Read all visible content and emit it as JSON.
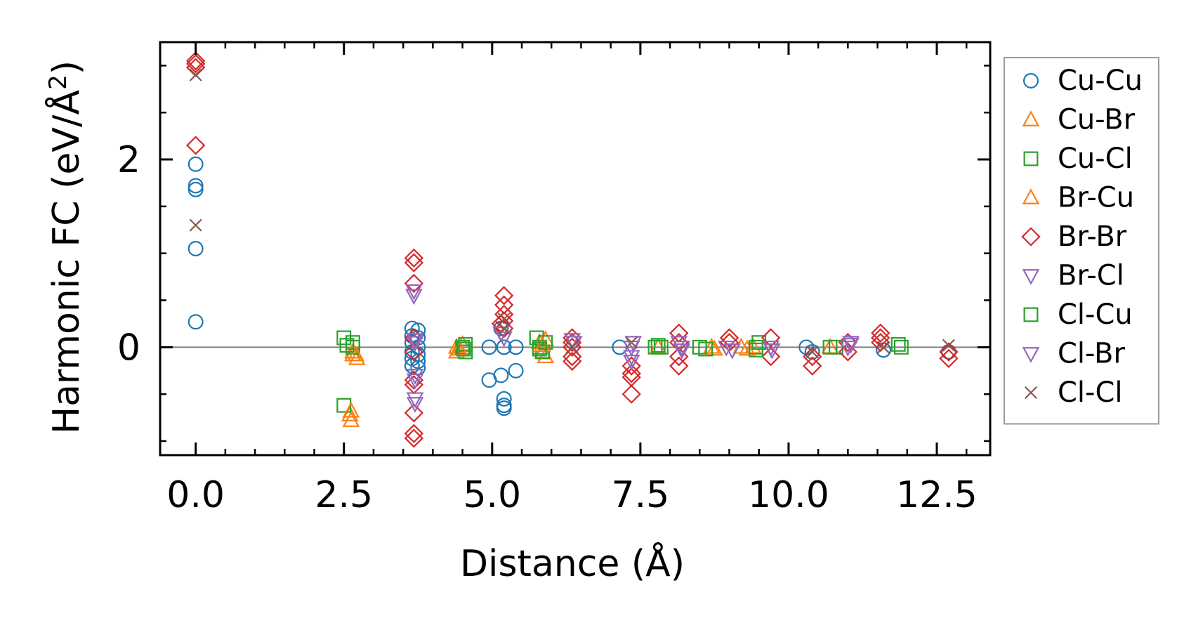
{
  "chart_data": {
    "type": "scatter",
    "title": "",
    "xlabel": "Distance (Å)",
    "ylabel_main": "Harmonic FC (eV/Å",
    "ylabel_sup": "2",
    "ylabel_close": ")",
    "xlim": [
      -0.6,
      13.4
    ],
    "ylim": [
      -1.15,
      3.25
    ],
    "xticks": [
      0.0,
      2.5,
      5.0,
      7.5,
      10.0,
      12.5
    ],
    "xtick_labels": [
      "0.0",
      "2.5",
      "5.0",
      "7.5",
      "10.0",
      "12.5"
    ],
    "yticks": [
      0,
      2
    ],
    "ytick_labels": [
      "0",
      "2"
    ],
    "minor_x_step": 0.5,
    "minor_y_step": 0.5,
    "zero_line": true,
    "legend_position": "outside-right",
    "series": [
      {
        "name": "Cu-Cu",
        "marker": "circle",
        "color": "#1f77b4",
        "points": [
          [
            0,
            1.95
          ],
          [
            0,
            1.72
          ],
          [
            0,
            1.68
          ],
          [
            0,
            1.05
          ],
          [
            0,
            0.27
          ],
          [
            3.65,
            0.2
          ],
          [
            3.65,
            0.12
          ],
          [
            3.65,
            0.05
          ],
          [
            3.65,
            -0.05
          ],
          [
            3.65,
            -0.12
          ],
          [
            3.65,
            -0.2
          ],
          [
            3.75,
            0.18
          ],
          [
            3.75,
            0.1
          ],
          [
            3.75,
            0.0
          ],
          [
            3.75,
            -0.08
          ],
          [
            3.75,
            -0.15
          ],
          [
            3.75,
            -0.22
          ],
          [
            4.95,
            0.0
          ],
          [
            4.95,
            -0.35
          ],
          [
            5.15,
            -0.3
          ],
          [
            5.15,
            0.2
          ],
          [
            5.2,
            0.0
          ],
          [
            5.2,
            -0.55
          ],
          [
            5.2,
            -0.62
          ],
          [
            5.2,
            -0.65
          ],
          [
            5.4,
            -0.25
          ],
          [
            5.4,
            0.0
          ],
          [
            7.15,
            0.0
          ],
          [
            10.3,
            0.0
          ],
          [
            10.4,
            -0.05
          ],
          [
            11.6,
            -0.03
          ],
          [
            12.7,
            -0.05
          ]
        ]
      },
      {
        "name": "Cu-Br",
        "marker": "triangle-up",
        "color": "#ff7f0e",
        "points": [
          [
            2.6,
            -0.72
          ],
          [
            2.62,
            -0.78
          ],
          [
            2.65,
            -0.05
          ],
          [
            2.65,
            -0.08
          ],
          [
            2.72,
            -0.12
          ],
          [
            4.4,
            0.0
          ],
          [
            4.4,
            -0.05
          ],
          [
            4.5,
            0.03
          ],
          [
            5.8,
            0.05
          ],
          [
            5.85,
            -0.05
          ],
          [
            5.9,
            0.08
          ],
          [
            5.9,
            -0.1
          ],
          [
            7.8,
            0.0
          ],
          [
            8.7,
            0.0
          ],
          [
            9.2,
            0.0
          ],
          [
            9.4,
            0.0
          ],
          [
            10.7,
            0.0
          ]
        ]
      },
      {
        "name": "Cu-Cl",
        "marker": "square",
        "color": "#2ca02c",
        "points": [
          [
            2.5,
            0.1
          ],
          [
            2.5,
            -0.62
          ],
          [
            2.65,
            0.05
          ],
          [
            2.65,
            0.0
          ],
          [
            4.5,
            0.0
          ],
          [
            4.55,
            0.03
          ],
          [
            4.55,
            -0.05
          ],
          [
            5.75,
            0.1
          ],
          [
            5.8,
            0.0
          ],
          [
            5.85,
            -0.05
          ],
          [
            5.9,
            0.05
          ],
          [
            7.75,
            0.0
          ],
          [
            7.85,
            0.0
          ],
          [
            8.5,
            0.0
          ],
          [
            9.45,
            0.0
          ],
          [
            9.5,
            0.05
          ],
          [
            10.7,
            0.0
          ],
          [
            10.8,
            0.0
          ],
          [
            11.9,
            0.0
          ]
        ]
      },
      {
        "name": "Br-Cu",
        "marker": "triangle-up",
        "color": "#ff7f0e",
        "points": [
          [
            2.62,
            -0.68
          ],
          [
            2.7,
            -0.08
          ],
          [
            4.45,
            -0.02
          ],
          [
            5.85,
            0.02
          ],
          [
            8.75,
            -0.02
          ],
          [
            9.3,
            -0.02
          ]
        ]
      },
      {
        "name": "Br-Br",
        "marker": "diamond",
        "color": "#d62728",
        "points": [
          [
            0,
            3.05
          ],
          [
            0,
            3.02
          ],
          [
            0,
            2.98
          ],
          [
            0,
            2.15
          ],
          [
            3.68,
            0.95
          ],
          [
            3.68,
            0.9
          ],
          [
            3.68,
            0.68
          ],
          [
            3.68,
            0.1
          ],
          [
            3.68,
            -0.05
          ],
          [
            3.68,
            -0.35
          ],
          [
            3.68,
            -0.4
          ],
          [
            3.68,
            -0.7
          ],
          [
            3.68,
            -0.92
          ],
          [
            3.68,
            -0.97
          ],
          [
            5.2,
            0.55
          ],
          [
            5.2,
            0.45
          ],
          [
            5.2,
            0.35
          ],
          [
            5.2,
            0.28
          ],
          [
            5.2,
            0.2
          ],
          [
            5.15,
            0.25
          ],
          [
            6.35,
            0.1
          ],
          [
            6.35,
            0.05
          ],
          [
            6.35,
            0.0
          ],
          [
            6.35,
            -0.1
          ],
          [
            6.35,
            -0.15
          ],
          [
            7.35,
            -0.2
          ],
          [
            7.35,
            -0.28
          ],
          [
            7.35,
            -0.32
          ],
          [
            7.35,
            -0.5
          ],
          [
            8.15,
            0.15
          ],
          [
            8.15,
            0.05
          ],
          [
            8.15,
            -0.1
          ],
          [
            8.15,
            -0.2
          ],
          [
            9.0,
            0.1
          ],
          [
            9.0,
            0.05
          ],
          [
            9.7,
            0.1
          ],
          [
            9.7,
            -0.1
          ],
          [
            10.4,
            -0.1
          ],
          [
            10.4,
            -0.2
          ],
          [
            11.0,
            0.05
          ],
          [
            11.0,
            -0.05
          ],
          [
            11.55,
            0.15
          ],
          [
            11.55,
            0.1
          ],
          [
            11.55,
            0.05
          ],
          [
            12.7,
            -0.05
          ],
          [
            12.7,
            -0.12
          ]
        ]
      },
      {
        "name": "Br-Cl",
        "marker": "triangle-down",
        "color": "#9467bd",
        "points": [
          [
            3.68,
            0.6
          ],
          [
            3.68,
            0.55
          ],
          [
            3.7,
            0.08
          ],
          [
            3.7,
            -0.3
          ],
          [
            3.7,
            -0.55
          ],
          [
            3.7,
            -0.6
          ],
          [
            5.15,
            0.15
          ],
          [
            5.2,
            0.1
          ],
          [
            6.35,
            0.08
          ],
          [
            7.35,
            0.0
          ],
          [
            7.35,
            -0.1
          ],
          [
            7.35,
            -0.15
          ],
          [
            8.15,
            0.05
          ],
          [
            8.2,
            0.0
          ],
          [
            8.95,
            0.0
          ],
          [
            9.7,
            0.0
          ],
          [
            11.0,
            0.0
          ],
          [
            11.05,
            0.05
          ]
        ]
      },
      {
        "name": "Cl-Cu",
        "marker": "square",
        "color": "#2ca02c",
        "points": [
          [
            2.55,
            0.02
          ],
          [
            4.52,
            -0.02
          ],
          [
            5.8,
            -0.02
          ],
          [
            7.8,
            0.02
          ],
          [
            8.6,
            -0.02
          ],
          [
            9.45,
            -0.03
          ],
          [
            11.85,
            0.03
          ]
        ]
      },
      {
        "name": "Cl-Br",
        "marker": "triangle-down",
        "color": "#9467bd",
        "points": [
          [
            3.7,
            0.05
          ],
          [
            3.7,
            -0.35
          ],
          [
            6.38,
            0.05
          ],
          [
            7.38,
            0.05
          ],
          [
            8.2,
            -0.03
          ],
          [
            9.05,
            -0.03
          ],
          [
            9.72,
            -0.03
          ],
          [
            11.05,
            0.03
          ]
        ]
      },
      {
        "name": "Cl-Cl",
        "marker": "x",
        "color": "#8c564b",
        "points": [
          [
            0,
            2.9
          ],
          [
            0,
            1.3
          ],
          [
            5.2,
            0.3
          ],
          [
            5.2,
            0.2
          ],
          [
            6.35,
            0.0
          ],
          [
            7.35,
            0.05
          ],
          [
            10.4,
            -0.05
          ],
          [
            11.6,
            0.0
          ],
          [
            12.7,
            0.02
          ]
        ]
      }
    ]
  }
}
